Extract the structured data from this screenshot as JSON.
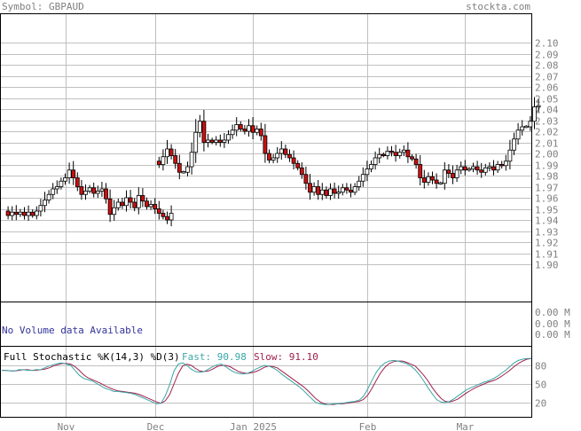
{
  "header": {
    "symbol": "Symbol: GBPAUD",
    "site": "stockta.com"
  },
  "volume_panel": {
    "message": "No Volume data Available",
    "labels": [
      "0.00 M",
      "0.00 M",
      "0.00 M"
    ]
  },
  "stoch_panel": {
    "title": "Full Stochastic %K(14,3) %D(3)",
    "fast_label": "Fast: 90.98",
    "slow_label": "Slow: 91.10",
    "fast_color": "#3aa6a6",
    "slow_color": "#a0204a",
    "levels": [
      "80",
      "50",
      "20"
    ]
  },
  "colors": {
    "up_body": "#ffffff",
    "down_body": "#cc1111",
    "wick": "#000000",
    "grid": "#c0c0c0"
  },
  "chart_data": {
    "type": "candlestick",
    "ylim": [
      1.89,
      2.11
    ],
    "yticks": [
      "2.10",
      "2.09",
      "2.08",
      "2.07",
      "2.06",
      "2.05",
      "2.04",
      "2.03",
      "2.02",
      "2.01",
      "2.00",
      "1.99",
      "1.98",
      "1.97",
      "1.96",
      "1.95",
      "1.94",
      "1.93",
      "1.92",
      "1.91",
      "1.90"
    ],
    "xticks": [
      "Nov",
      "Dec",
      "Jan 2025",
      "Feb",
      "Mar"
    ],
    "xtick_index": [
      15,
      37,
      61,
      89,
      113
    ],
    "segments": [
      {
        "start": 0,
        "closes": [
          1.948,
          1.944,
          1.947,
          1.945,
          1.947,
          1.944,
          1.947,
          1.944,
          1.948,
          1.953,
          1.958,
          1.963,
          1.968,
          1.97,
          1.975,
          1.978,
          1.985,
          1.978,
          1.97,
          1.963,
          1.966,
          1.969,
          1.964,
          1.966,
          1.968,
          1.959,
          1.945,
          1.951,
          1.956,
          1.953,
          1.96,
          1.956,
          1.951,
          1.962,
          1.957,
          1.952,
          1.954,
          1.95,
          1.946,
          1.943,
          1.94,
          1.946
        ]
      },
      {
        "start": 37,
        "closes": [
          1.993,
          1.99,
          1.997,
          2.004,
          1.998,
          1.991,
          1.983,
          1.983,
          1.988,
          2.001,
          2.019,
          2.029,
          2.01,
          2.012,
          2.01,
          2.012,
          2.01,
          2.012,
          2.017,
          2.021,
          2.026,
          2.022,
          2.02,
          2.025,
          2.019,
          2.022,
          2.016,
          2.0,
          1.994,
          1.996,
          2.0,
          2.004,
          1.999,
          1.996,
          1.991,
          1.987,
          1.981,
          1.973,
          1.965,
          1.97,
          1.963,
          1.967,
          1.962,
          1.968,
          1.964,
          1.965,
          1.969,
          1.967,
          1.965,
          1.97,
          1.975,
          1.981,
          1.986,
          1.99,
          1.996,
          1.999,
          1.998,
          2.002,
          2.001,
          1.998,
          2.001,
          2.003,
          1.997,
          1.995,
          1.99,
          1.978,
          1.974,
          1.979,
          1.976,
          1.973,
          1.973,
          1.985,
          1.982,
          1.978,
          1.985,
          1.988,
          1.985,
          1.986,
          1.988,
          1.985,
          1.983,
          1.987,
          1.988,
          1.985,
          1.99,
          1.989,
          1.993,
          2.003,
          2.013,
          2.021,
          2.024,
          2.024,
          2.029,
          2.042,
          2.043
        ]
      }
    ],
    "stochastic": {
      "k": [
        72,
        72,
        71,
        71,
        73,
        73,
        72,
        72,
        73,
        73,
        76,
        79,
        81,
        83,
        84,
        82,
        80,
        72,
        64,
        59,
        57,
        55,
        51,
        47,
        43,
        41,
        38,
        38,
        37,
        36,
        35,
        33,
        30,
        27,
        24,
        21,
        18,
        19,
        31,
        49,
        71,
        82,
        84,
        80,
        74,
        70,
        69,
        70,
        74,
        78,
        81,
        82,
        78,
        73,
        69,
        67,
        66,
        67,
        70,
        74,
        77,
        80,
        79,
        76,
        72,
        66,
        61,
        56,
        51,
        46,
        40,
        33,
        26,
        20,
        18,
        17,
        17,
        18,
        18,
        19,
        20,
        21,
        22,
        24,
        30,
        42,
        56,
        69,
        78,
        84,
        87,
        88,
        87,
        85,
        83,
        79,
        73,
        65,
        55,
        44,
        34,
        25,
        21,
        20,
        22,
        26,
        31,
        36,
        41,
        44,
        47,
        50,
        53,
        55,
        58,
        62,
        67,
        72,
        78,
        84,
        88,
        90,
        91,
        91
      ],
      "d": [
        72,
        72,
        71,
        71,
        72,
        73,
        73,
        72,
        72,
        73,
        74,
        76,
        79,
        81,
        83,
        83,
        82,
        78,
        72,
        65,
        60,
        57,
        54,
        51,
        47,
        44,
        41,
        39,
        38,
        37,
        36,
        35,
        33,
        30,
        27,
        24,
        21,
        19,
        23,
        33,
        50,
        67,
        79,
        82,
        80,
        75,
        71,
        70,
        71,
        74,
        78,
        80,
        80,
        78,
        74,
        70,
        68,
        67,
        68,
        70,
        73,
        77,
        79,
        78,
        76,
        71,
        66,
        61,
        56,
        51,
        46,
        40,
        33,
        26,
        21,
        18,
        17,
        17,
        18,
        18,
        19,
        20,
        21,
        22,
        25,
        32,
        43,
        56,
        68,
        77,
        83,
        86,
        87,
        87,
        85,
        82,
        79,
        72,
        64,
        55,
        44,
        35,
        27,
        22,
        21,
        23,
        26,
        31,
        36,
        40,
        44,
        47,
        50,
        53,
        55,
        58,
        62,
        67,
        72,
        78,
        83,
        87,
        90,
        91
      ]
    }
  }
}
